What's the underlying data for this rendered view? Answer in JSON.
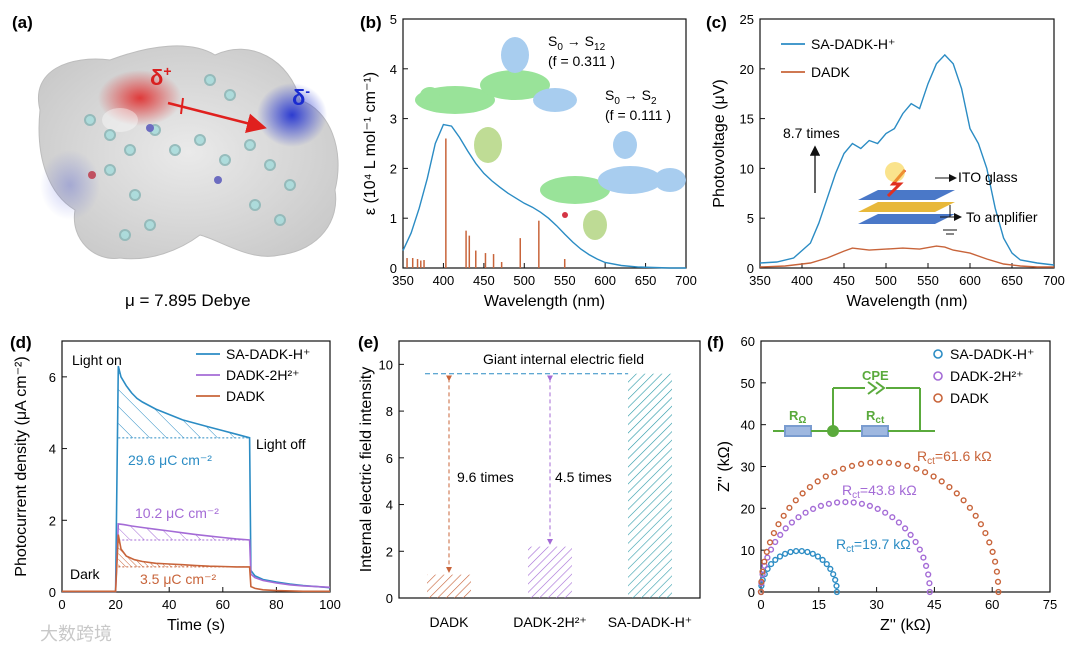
{
  "panels": {
    "a": {
      "label": "(a)",
      "delta_plus": "δ",
      "delta_plus_sup": "+",
      "delta_minus": "δ",
      "delta_minus_sup": "-",
      "dipole_text": "μ =  7.895 Debye",
      "colors": {
        "positive": "#d92020",
        "negative": "#1a2bd0",
        "neutral": "#cfcfcf",
        "arrow": "#e0201e"
      }
    },
    "b": {
      "label": "(b)"
    },
    "c": {
      "label": "(c)"
    },
    "d": {
      "label": "(d)"
    },
    "e": {
      "label": "(e)"
    },
    "f": {
      "label": "(f)"
    }
  },
  "watermark": "大数跨境",
  "chart_data": [
    {
      "id": "b",
      "type": "line",
      "xlabel": "Wavelength (nm)",
      "ylabel": "ε (10⁴ L mol⁻¹ cm⁻¹)",
      "xlim": [
        350,
        700
      ],
      "ylim": [
        0,
        5
      ],
      "xticks": [
        350,
        400,
        450,
        500,
        550,
        600,
        650,
        700
      ],
      "yticks": [
        0,
        1,
        2,
        3,
        4,
        5
      ],
      "series": [
        {
          "color": "#2b8cc4",
          "x": [
            350,
            360,
            370,
            380,
            390,
            400,
            410,
            420,
            430,
            440,
            450,
            460,
            470,
            480,
            490,
            500,
            510,
            520,
            530,
            540,
            550,
            560,
            570,
            580,
            590,
            600,
            620,
            640,
            660,
            680,
            700
          ],
          "y": [
            0.35,
            0.7,
            1.2,
            1.8,
            2.5,
            2.88,
            2.85,
            2.62,
            2.35,
            2.1,
            1.9,
            1.75,
            1.62,
            1.5,
            1.4,
            1.3,
            1.22,
            1.12,
            1.0,
            0.85,
            0.68,
            0.52,
            0.38,
            0.27,
            0.18,
            0.11,
            0.05,
            0.02,
            0.01,
            0.0,
            0.0
          ]
        }
      ],
      "sticks": {
        "color": "#c8643a",
        "x": [
          355,
          362,
          368,
          372,
          376,
          403,
          428,
          432,
          440,
          452,
          462,
          472,
          495,
          518,
          550
        ],
        "y": [
          0.2,
          0.2,
          0.18,
          0.15,
          0.16,
          2.6,
          0.75,
          0.65,
          0.35,
          0.3,
          0.28,
          0.12,
          0.6,
          0.95,
          0.18
        ]
      },
      "annotations": [
        {
          "main": "S",
          "sub1": "0",
          "arrow": " → S",
          "sub2": "12",
          "osc": "(f = 0.311 )"
        },
        {
          "main": "S",
          "sub1": "0",
          "arrow": " → S",
          "sub2": "2",
          "osc": "(f = 0.111 )"
        }
      ]
    },
    {
      "id": "c",
      "type": "line",
      "xlabel": "Wavelength (nm)",
      "ylabel": "Photovoltage (μV)",
      "xlim": [
        350,
        700
      ],
      "ylim": [
        0,
        25
      ],
      "xticks": [
        350,
        400,
        450,
        500,
        550,
        600,
        650,
        700
      ],
      "yticks": [
        0,
        5,
        10,
        15,
        20,
        25
      ],
      "legend_position": "top-left",
      "series": [
        {
          "name": "SA-DADK-H⁺",
          "color": "#2b8cc4",
          "x": [
            350,
            370,
            390,
            410,
            420,
            430,
            440,
            450,
            460,
            470,
            480,
            490,
            500,
            510,
            520,
            530,
            540,
            550,
            560,
            570,
            580,
            590,
            600,
            610,
            620,
            630,
            640,
            650,
            660,
            680,
            700
          ],
          "y": [
            0.5,
            0.6,
            1.0,
            2.5,
            4.5,
            7.0,
            9.5,
            11.5,
            12.5,
            12.0,
            12.8,
            12.5,
            13.5,
            14.0,
            15.5,
            16.5,
            16.0,
            18.5,
            20.5,
            21.4,
            20.5,
            18.0,
            14.0,
            12.5,
            10.0,
            6.0,
            3.0,
            1.5,
            0.8,
            0.5,
            0.3
          ]
        },
        {
          "name": "DADK",
          "color": "#c8643a",
          "x": [
            350,
            380,
            410,
            430,
            450,
            460,
            470,
            480,
            500,
            520,
            540,
            560,
            570,
            580,
            600,
            620,
            640,
            660,
            680,
            700
          ],
          "y": [
            0.1,
            0.2,
            0.5,
            1.0,
            1.7,
            2.0,
            1.9,
            1.8,
            1.9,
            2.0,
            1.9,
            2.2,
            2.1,
            1.8,
            1.5,
            0.9,
            0.4,
            0.2,
            0.1,
            0.1
          ]
        }
      ],
      "annotations": {
        "times": "8.7 times",
        "ito": "ITO glass",
        "amp": "To amplifier"
      }
    },
    {
      "id": "d",
      "type": "line",
      "xlabel": "Time (s)",
      "ylabel": "Photocurrent density (μA cm⁻²)",
      "xlim": [
        0,
        100
      ],
      "ylim": [
        0,
        7
      ],
      "xticks": [
        0,
        20,
        40,
        60,
        80,
        100
      ],
      "yticks": [
        0,
        2,
        4,
        6
      ],
      "legend_position": "top-right",
      "series": [
        {
          "name": "SA-DADK-H⁺",
          "color": "#2b8cc4",
          "x": [
            0,
            20,
            21,
            22,
            24,
            26,
            28,
            30,
            35,
            40,
            45,
            50,
            55,
            60,
            65,
            70,
            70.5,
            72,
            75,
            80,
            85,
            90,
            95,
            100
          ],
          "y": [
            0.02,
            0.02,
            6.3,
            6.0,
            5.75,
            5.55,
            5.4,
            5.3,
            5.1,
            4.95,
            4.8,
            4.7,
            4.6,
            4.5,
            4.4,
            4.3,
            0.6,
            0.45,
            0.35,
            0.28,
            0.22,
            0.18,
            0.15,
            0.12
          ]
        },
        {
          "name": "DADK-2H²⁺",
          "color": "#a46bd6",
          "x": [
            0,
            20,
            21,
            23,
            26,
            30,
            35,
            40,
            45,
            50,
            55,
            60,
            65,
            70,
            70.5,
            72,
            75,
            80,
            85,
            90,
            95,
            100
          ],
          "y": [
            0.02,
            0.02,
            1.9,
            1.88,
            1.84,
            1.8,
            1.75,
            1.7,
            1.65,
            1.6,
            1.56,
            1.52,
            1.48,
            1.45,
            0.5,
            0.4,
            0.32,
            0.25,
            0.2,
            0.17,
            0.15,
            0.13
          ]
        },
        {
          "name": "DADK",
          "color": "#c8643a",
          "x": [
            0,
            20,
            21,
            22,
            24,
            27,
            30,
            35,
            40,
            45,
            50,
            55,
            60,
            65,
            70,
            70.5,
            72,
            75,
            80,
            85,
            90,
            95,
            100
          ],
          "y": [
            0.02,
            0.02,
            1.6,
            1.2,
            1.0,
            0.9,
            0.85,
            0.8,
            0.78,
            0.76,
            0.74,
            0.72,
            0.71,
            0.7,
            0.7,
            0.15,
            0.1,
            0.06,
            0.04,
            0.03,
            0.02,
            0.02,
            0.02
          ]
        }
      ],
      "annotations": {
        "light_on": "Light on",
        "light_off": "Light off",
        "dark": "Dark",
        "q1": "29.6 μC cm⁻²",
        "q2": "10.2 μC cm⁻²",
        "q3": "3.5 μC cm⁻²"
      }
    },
    {
      "id": "e",
      "type": "bar",
      "ylabel": "Internal electric  field intensity",
      "categories": [
        "DADK",
        "DADK-2H²⁺",
        "SA-DADK-H⁺"
      ],
      "values": [
        1.0,
        2.2,
        9.6
      ],
      "colors": [
        "#c8643a",
        "#a46bd6",
        "#2b9aa8"
      ],
      "ylim": [
        0,
        11
      ],
      "yticks": [
        0,
        2,
        4,
        6,
        8,
        10
      ],
      "annotations": {
        "giant": "Giant internal electric field",
        "t1": "9.6 times",
        "t2": "4.5 times"
      }
    },
    {
      "id": "f",
      "type": "scatter",
      "xlabel": "Z'' (kΩ)",
      "ylabel": "Z'' (kΩ)",
      "xlim": [
        0,
        75
      ],
      "ylim": [
        0,
        60
      ],
      "xticks": [
        0,
        15,
        30,
        45,
        60,
        75
      ],
      "yticks": [
        0,
        10,
        20,
        30,
        40,
        50,
        60
      ],
      "legend_position": "top-right",
      "series": [
        {
          "name": "SA-DADK-H⁺",
          "color": "#2b8cc4",
          "diameter": 19.7,
          "height": 9.8
        },
        {
          "name": "DADK-2H²⁺",
          "color": "#a46bd6",
          "diameter": 43.8,
          "height": 21.5
        },
        {
          "name": "DADK",
          "color": "#c8643a",
          "diameter": 61.6,
          "height": 31.0
        }
      ],
      "annotations": [
        {
          "r": "R",
          "sub": "ct",
          "val": "=19.7 kΩ"
        },
        {
          "r": "R",
          "sub": "ct",
          "val": "=43.8 kΩ"
        },
        {
          "r": "R",
          "sub": "ct",
          "val": "=61.6 kΩ"
        }
      ],
      "circuit": {
        "cpe": "CPE",
        "r1": "R",
        "r1sub": "Ω",
        "r2": "R",
        "r2sub": "ct",
        "color": "#5aaa3c"
      }
    }
  ]
}
